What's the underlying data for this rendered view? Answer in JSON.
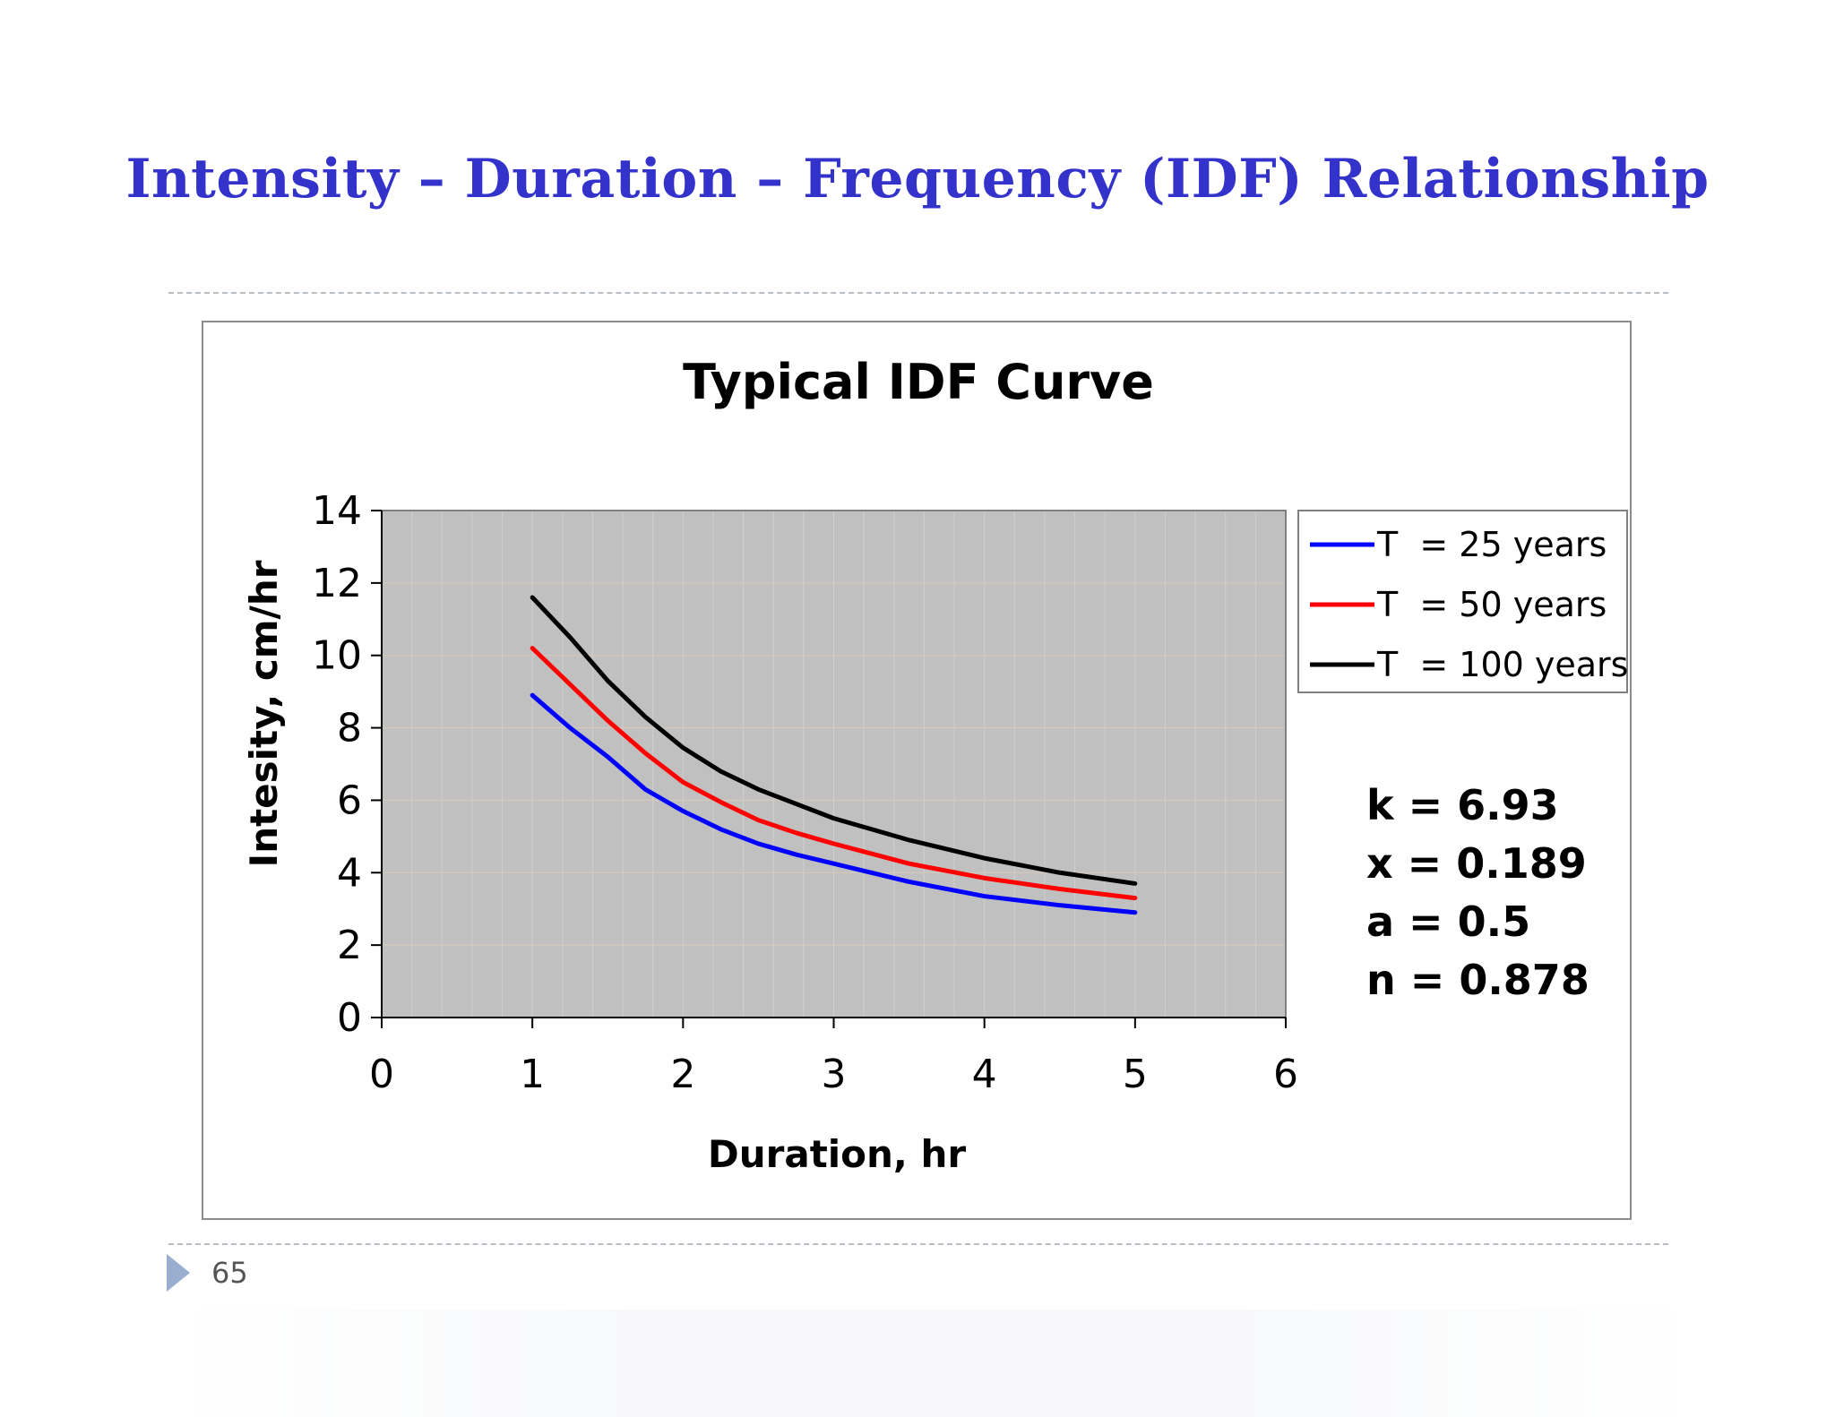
{
  "slide": {
    "title": "Intensity – Duration – Frequency (IDF) Relationship",
    "page_number": "65"
  },
  "chart_data": {
    "type": "line",
    "title": "Typical IDF Curve",
    "xlabel": "Duration, hr",
    "ylabel": "Intesity, cm/hr",
    "xlim": [
      0,
      6
    ],
    "ylim": [
      0,
      14
    ],
    "x_ticks": [
      "0",
      "1",
      "2",
      "3",
      "4",
      "5",
      "6"
    ],
    "y_ticks": [
      "0",
      "2",
      "4",
      "6",
      "8",
      "10",
      "12",
      "14"
    ],
    "x": [
      1,
      1.25,
      1.5,
      1.75,
      2,
      2.25,
      2.5,
      2.75,
      3,
      3.5,
      4,
      4.5,
      5
    ],
    "series": [
      {
        "name": "T  = 25 years",
        "color": "#0000ff",
        "values": [
          8.9,
          8.0,
          7.2,
          6.3,
          5.7,
          5.2,
          4.8,
          4.5,
          4.25,
          3.75,
          3.35,
          3.1,
          2.9
        ]
      },
      {
        "name": "T  = 50 years",
        "color": "#ff0000",
        "values": [
          10.2,
          9.2,
          8.2,
          7.3,
          6.5,
          5.95,
          5.45,
          5.1,
          4.8,
          4.25,
          3.85,
          3.55,
          3.3
        ]
      },
      {
        "name": "T  = 100 years",
        "color": "#000000",
        "values": [
          11.6,
          10.5,
          9.3,
          8.3,
          7.45,
          6.8,
          6.3,
          5.9,
          5.5,
          4.9,
          4.4,
          4.0,
          3.7
        ]
      }
    ],
    "annotations": [
      "k = 6.93",
      "x = 0.189",
      "a = 0.5",
      "n = 0.878"
    ],
    "plot_background": "#c0c0c0",
    "grid": true,
    "legend_position": "right-top"
  }
}
